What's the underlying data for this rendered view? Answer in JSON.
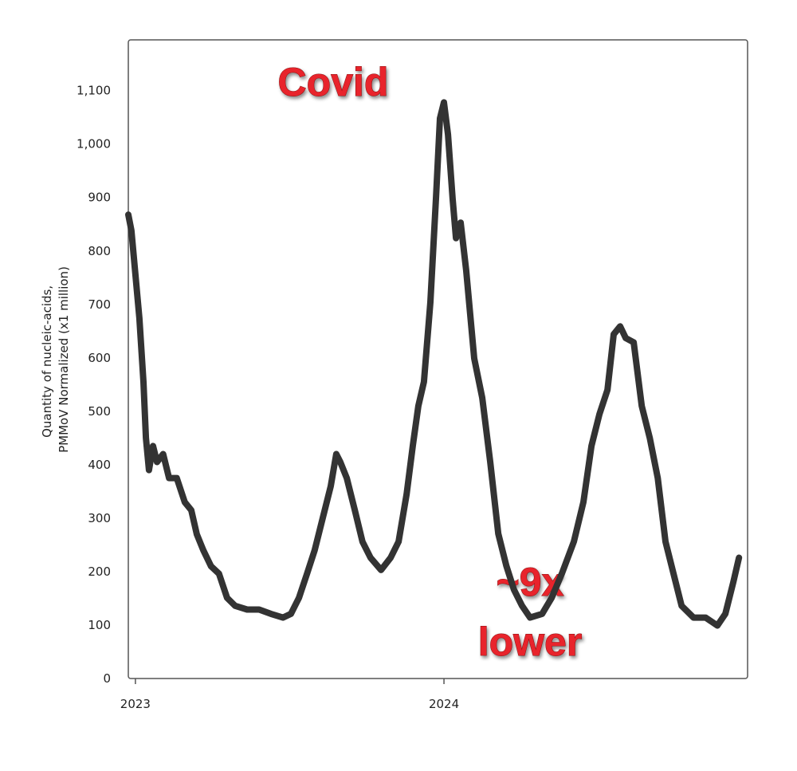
{
  "chart_data": {
    "type": "line",
    "y_label": [
      "Quantity of nucleic-acids,",
      "PMMoV Normalized (x1 million)"
    ],
    "annotations": [
      "Covid",
      "~9x",
      "lower"
    ],
    "xlim": [
      2022.977,
      2024.984
    ],
    "xticks": [
      2023,
      2024
    ],
    "ylim": [
      0,
      1195
    ],
    "yticks": [
      0,
      100,
      200,
      300,
      400,
      500,
      600,
      700,
      800,
      900,
      {
        "value": 1000,
        "label": "1,000"
      },
      {
        "value": 1100,
        "label": "1,100"
      }
    ],
    "grid": false,
    "x": [
      2022.977,
      2022.987,
      2023.013,
      2023.026,
      2023.034,
      2023.044,
      2023.057,
      2023.07,
      2023.09,
      2023.109,
      2023.134,
      2023.16,
      2023.181,
      2023.199,
      2023.22,
      2023.245,
      2023.271,
      2023.297,
      2023.323,
      2023.362,
      2023.401,
      2023.439,
      2023.478,
      2023.504,
      2023.53,
      2023.556,
      2023.581,
      2023.607,
      2023.633,
      2023.651,
      2023.664,
      2023.685,
      2023.711,
      2023.736,
      2023.762,
      2023.796,
      2023.827,
      2023.853,
      2023.879,
      2023.899,
      2023.917,
      2023.935,
      2023.956,
      2023.974,
      2023.987,
      2024.0,
      2024.013,
      2024.028,
      2024.039,
      2024.054,
      2024.072,
      2024.098,
      2024.124,
      2024.15,
      2024.176,
      2024.202,
      2024.227,
      2024.253,
      2024.279,
      2024.318,
      2024.349,
      2024.382,
      2024.421,
      2024.452,
      2024.478,
      2024.504,
      2024.53,
      2024.55,
      2024.571,
      2024.589,
      2024.615,
      2024.641,
      2024.667,
      2024.693,
      2024.718,
      2024.744,
      2024.77,
      2024.809,
      2024.848,
      2024.886,
      2024.912,
      2024.938,
      2024.956
    ],
    "series": [
      {
        "color": "#333333",
        "values": [
          868,
          838,
          674,
          555,
          450,
          390,
          435,
          405,
          420,
          375,
          375,
          330,
          315,
          270,
          240,
          210,
          196,
          151,
          136,
          129,
          129,
          121,
          114,
          121,
          151,
          196,
          240,
          300,
          360,
          420,
          405,
          375,
          315,
          256,
          226,
          203,
          226,
          256,
          345,
          435,
          510,
          555,
          704,
          898,
          1048,
          1078,
          1018,
          898,
          824,
          853,
          764,
          599,
          525,
          405,
          271,
          211,
          166,
          136,
          114,
          121,
          151,
          196,
          256,
          330,
          435,
          495,
          540,
          644,
          659,
          637,
          629,
          510,
          450,
          375,
          256,
          196,
          136,
          114,
          114,
          99,
          121,
          181,
          226
        ]
      }
    ]
  }
}
